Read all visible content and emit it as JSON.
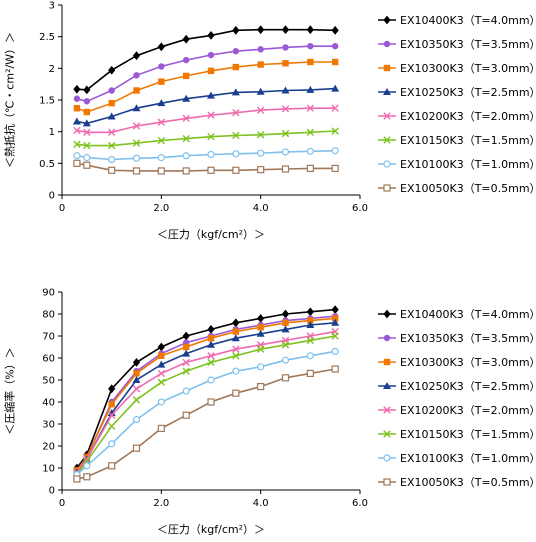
{
  "chart_data": [
    {
      "type": "line",
      "title": "",
      "xlabel": "＜圧力（kgf/cm²）＞",
      "ylabel": "＜熱抵抗（℃・cm²/W）＞",
      "xlim": [
        0,
        6
      ],
      "ylim": [
        0,
        3
      ],
      "xticks": [
        "0",
        "2.0",
        "4.0",
        "6.0"
      ],
      "yticks": [
        "0",
        "0.5",
        "1",
        "1.5",
        "2",
        "2.5",
        "3"
      ],
      "grid": false,
      "legend_position": "right",
      "x": [
        0.3,
        0.5,
        1.0,
        1.5,
        2.0,
        2.5,
        3.0,
        3.5,
        4.0,
        4.5,
        5.0,
        5.5
      ],
      "series": [
        {
          "name": "EX10400K3（T=4.0mm）",
          "color": "#000000",
          "marker": "diamond",
          "values": [
            1.67,
            1.66,
            1.97,
            2.2,
            2.34,
            2.46,
            2.52,
            2.6,
            2.61,
            2.61,
            2.61,
            2.6
          ]
        },
        {
          "name": "EX10350K3（T=3.5mm）",
          "color": "#9b59d6",
          "marker": "circle",
          "values": [
            1.52,
            1.48,
            1.65,
            1.89,
            2.03,
            2.13,
            2.21,
            2.27,
            2.3,
            2.33,
            2.35,
            2.35
          ]
        },
        {
          "name": "EX10300K3（T=3.0mm）",
          "color": "#f07800",
          "marker": "square",
          "values": [
            1.37,
            1.31,
            1.45,
            1.65,
            1.79,
            1.88,
            1.96,
            2.02,
            2.06,
            2.08,
            2.1,
            2.1
          ]
        },
        {
          "name": "EX10250K3（T=2.5mm）",
          "color": "#1a3f8f",
          "marker": "triangle",
          "values": [
            1.16,
            1.13,
            1.24,
            1.37,
            1.45,
            1.52,
            1.57,
            1.62,
            1.63,
            1.65,
            1.66,
            1.68
          ]
        },
        {
          "name": "EX10200K3（T=2.0mm）",
          "color": "#f06ab0",
          "marker": "x",
          "values": [
            1.02,
            0.99,
            0.99,
            1.09,
            1.15,
            1.21,
            1.26,
            1.3,
            1.34,
            1.36,
            1.37,
            1.37
          ]
        },
        {
          "name": "EX10150K3（T=1.5mm）",
          "color": "#7dc21e",
          "marker": "x",
          "values": [
            0.8,
            0.78,
            0.78,
            0.82,
            0.86,
            0.89,
            0.92,
            0.94,
            0.95,
            0.97,
            0.99,
            1.01
          ]
        },
        {
          "name": "EX10100K3（T=1.0mm）",
          "color": "#7ec0ee",
          "marker": "open-circle",
          "values": [
            0.62,
            0.59,
            0.56,
            0.58,
            0.59,
            0.62,
            0.64,
            0.65,
            0.66,
            0.68,
            0.69,
            0.7
          ]
        },
        {
          "name": "EX10050K3（T=0.5mm）",
          "color": "#a0785a",
          "marker": "open-square",
          "values": [
            0.5,
            0.47,
            0.39,
            0.38,
            0.38,
            0.38,
            0.39,
            0.39,
            0.4,
            0.41,
            0.42,
            0.42
          ]
        }
      ]
    },
    {
      "type": "line",
      "title": "",
      "xlabel": "＜圧力（kgf/cm²）＞",
      "ylabel": "＜圧縮率（%）＞",
      "xlim": [
        0,
        6
      ],
      "ylim": [
        0,
        90
      ],
      "xticks": [
        "0",
        "2.0",
        "4.0",
        "6.0"
      ],
      "yticks": [
        "0",
        "10",
        "20",
        "30",
        "40",
        "50",
        "60",
        "70",
        "80",
        "90"
      ],
      "grid": false,
      "legend_position": "right",
      "x": [
        0.3,
        0.5,
        1.0,
        1.5,
        2.0,
        2.5,
        3.0,
        3.5,
        4.0,
        4.5,
        5.0,
        5.5
      ],
      "series": [
        {
          "name": "EX10400K3（T=4.0mm）",
          "color": "#000000",
          "marker": "diamond",
          "values": [
            10,
            16,
            46,
            58,
            65,
            70,
            73,
            76,
            78,
            80,
            81,
            82
          ]
        },
        {
          "name": "EX10350K3（T=3.5mm）",
          "color": "#9b59d6",
          "marker": "circle",
          "values": [
            9,
            15,
            40,
            54,
            62,
            67,
            70,
            73,
            75,
            77,
            78,
            79
          ]
        },
        {
          "name": "EX10300K3（T=3.0mm）",
          "color": "#f07800",
          "marker": "square",
          "values": [
            9,
            15,
            39,
            53,
            61,
            65,
            69,
            72,
            74,
            76,
            77,
            78
          ]
        },
        {
          "name": "EX10250K3（T=2.5mm）",
          "color": "#1a3f8f",
          "marker": "triangle",
          "values": [
            8,
            14,
            35,
            50,
            57,
            62,
            66,
            69,
            71,
            73,
            75,
            76
          ]
        },
        {
          "name": "EX10200K3（T=2.0mm）",
          "color": "#f06ab0",
          "marker": "x",
          "values": [
            8,
            14,
            34,
            46,
            53,
            58,
            61,
            64,
            66,
            68,
            70,
            72
          ]
        },
        {
          "name": "EX10150K3（T=1.5mm）",
          "color": "#7dc21e",
          "marker": "x",
          "values": [
            7,
            13,
            29,
            41,
            49,
            54,
            58,
            61,
            64,
            66,
            68,
            70
          ]
        },
        {
          "name": "EX10100K3（T=1.0mm）",
          "color": "#7ec0ee",
          "marker": "open-circle",
          "values": [
            7,
            11,
            21,
            32,
            40,
            45,
            50,
            54,
            56,
            59,
            61,
            63
          ]
        },
        {
          "name": "EX10050K3（T=0.5mm）",
          "color": "#a0785a",
          "marker": "open-square",
          "values": [
            5,
            6,
            11,
            19,
            28,
            34,
            40,
            44,
            47,
            51,
            53,
            55
          ]
        }
      ]
    }
  ]
}
